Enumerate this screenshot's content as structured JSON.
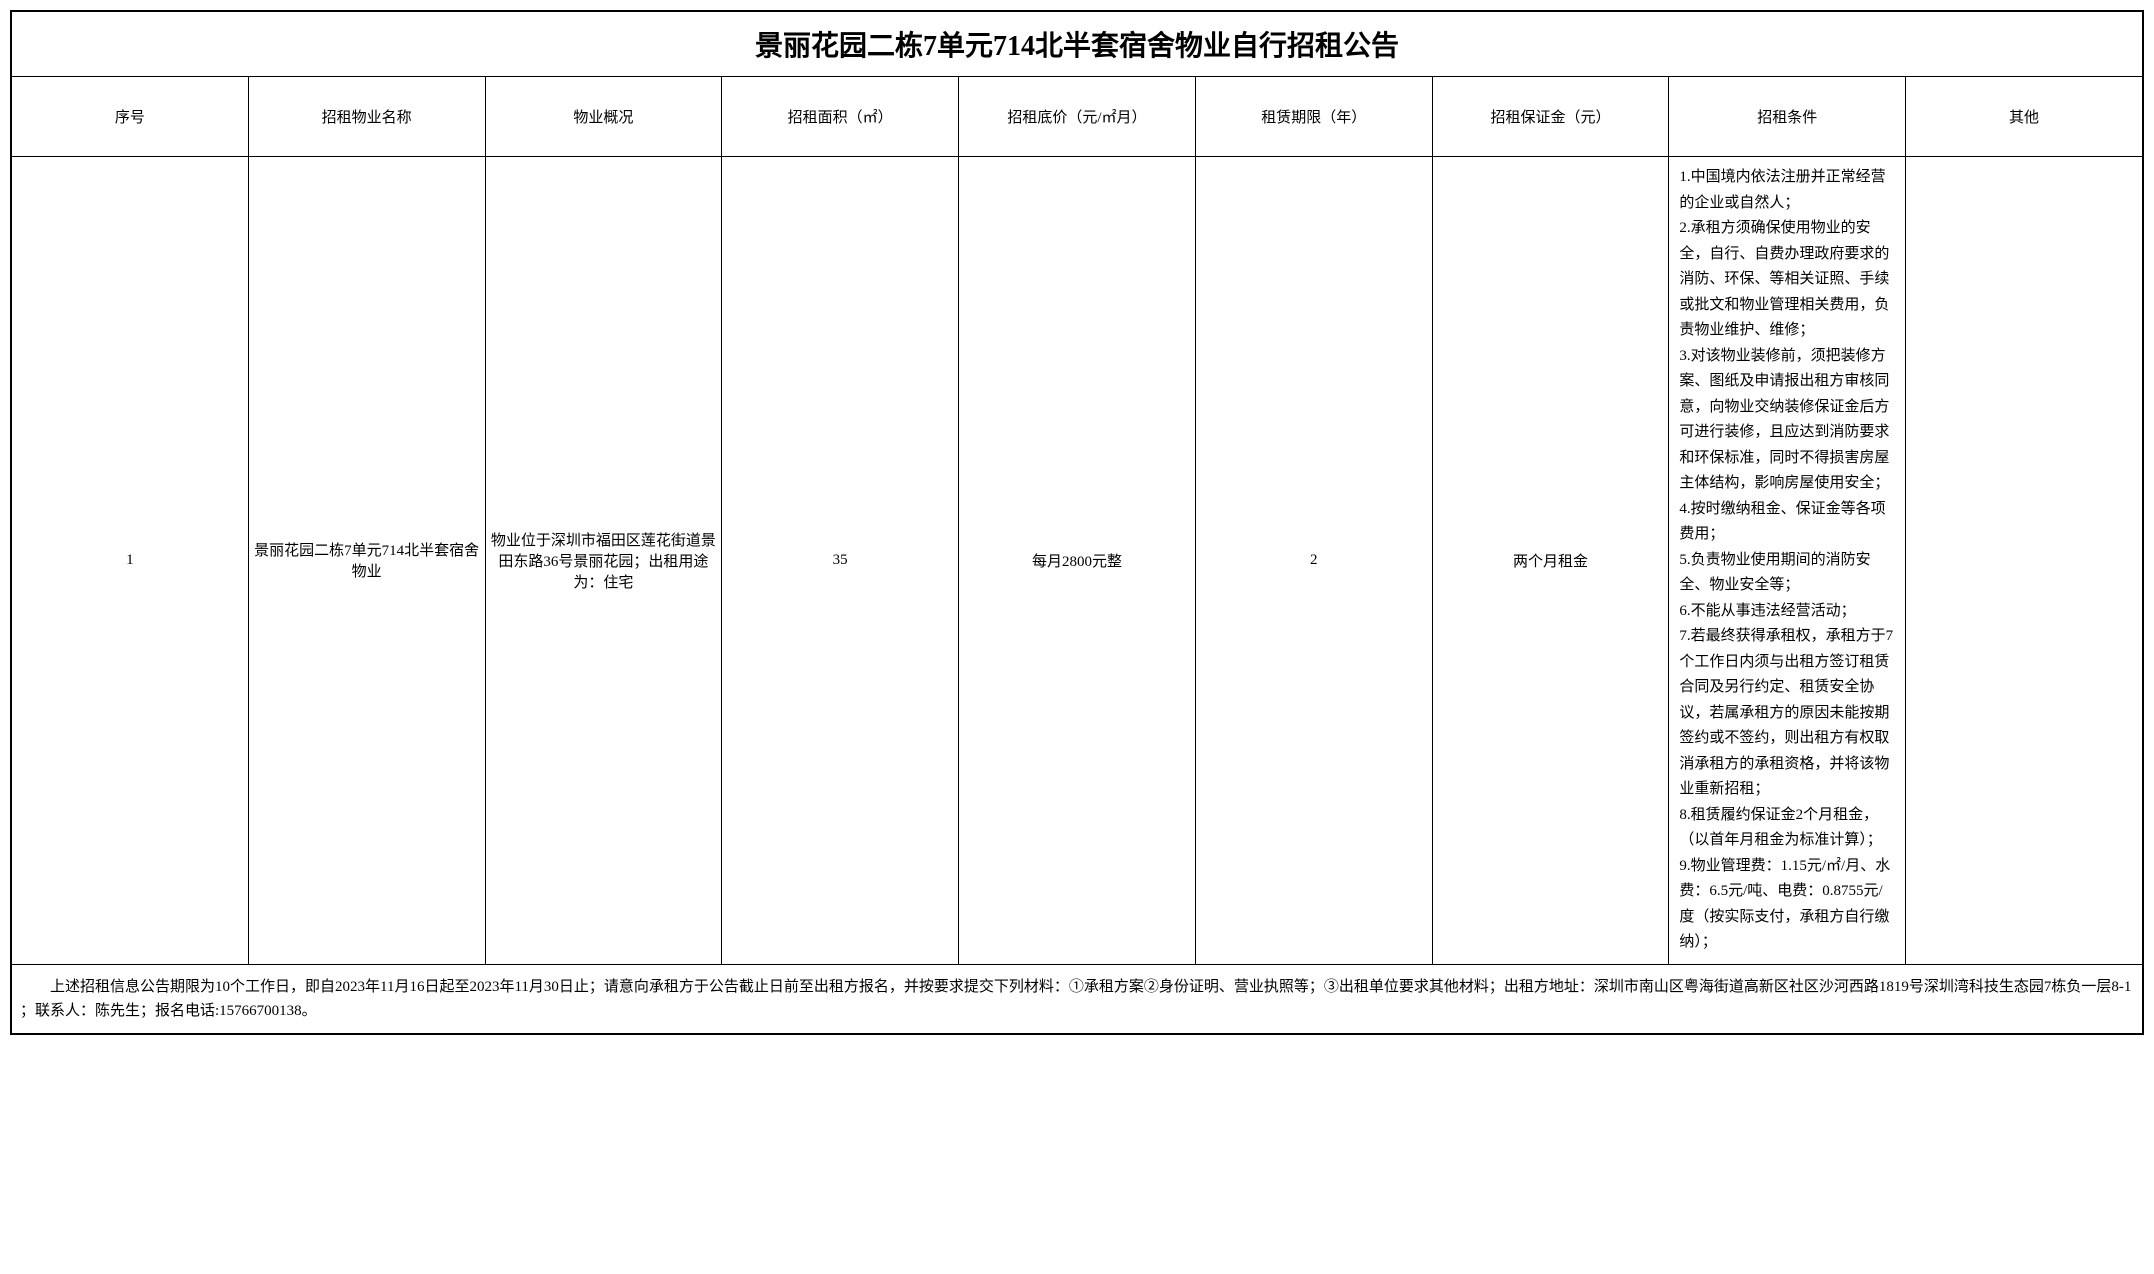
{
  "title": "景丽花园二栋7单元714北半套宿舍物业自行招租公告",
  "headers": {
    "seq": "序号",
    "name": "招租物业名称",
    "overview": "物业概况",
    "area": "招租面积（㎡）",
    "price": "招租底价（元/㎡月）",
    "term": "租赁期限（年）",
    "deposit": "招租保证金（元）",
    "conditions": "招租条件",
    "other": "其他"
  },
  "row": {
    "seq": "1",
    "name": "景丽花园二栋7单元714北半套宿舍物业",
    "overview": "物业位于深圳市福田区莲花街道景田东路36号景丽花园；出租用途为：住宅",
    "area": "35",
    "price": "每月2800元整",
    "term": "2",
    "deposit": "两个月租金",
    "conditions": "1.中国境内依法注册并正常经营的企业或自然人；\n2.承租方须确保使用物业的安全，自行、自费办理政府要求的消防、环保、等相关证照、手续或批文和物业管理相关费用，负责物业维护、维修；\n3.对该物业装修前，须把装修方案、图纸及申请报出租方审核同意，向物业交纳装修保证金后方可进行装修，且应达到消防要求和环保标准，同时不得损害房屋主体结构，影响房屋使用安全；\n4.按时缴纳租金、保证金等各项费用；\n5.负责物业使用期间的消防安全、物业安全等；\n6.不能从事违法经营活动；\n7.若最终获得承租权，承租方于7个工作日内须与出租方签订租赁合同及另行约定、租赁安全协议，若属承租方的原因未能按期签约或不签约，则出租方有权取消承租方的承租资格，并将该物业重新招租；\n8.租赁履约保证金2个月租金，（以首年月租金为标准计算）；\n9.物业管理费：1.15元/㎡/月、水费：6.5元/吨、电费：0.8755元/度（按实际支付，承租方自行缴纳）；",
    "other": ""
  },
  "footer": "　　上述招租信息公告期限为10个工作日，即自2023年11月16日起至2023年11月30日止；请意向承租方于公告截止日前至出租方报名，并按要求提交下列材料：①承租方案②身份证明、营业执照等；③出租单位要求其他材料；出租方地址：深圳市南山区粤海街道高新区社区沙河西路1819号深圳湾科技生态园7栋负一层8-1 ；联系人：陈先生；报名电话:15766700138。",
  "styling": {
    "border_color": "#000000",
    "background_color": "#ffffff",
    "title_fontsize": 28,
    "header_fontsize": 15,
    "cell_fontsize": 15,
    "font_family": "SimSun"
  }
}
